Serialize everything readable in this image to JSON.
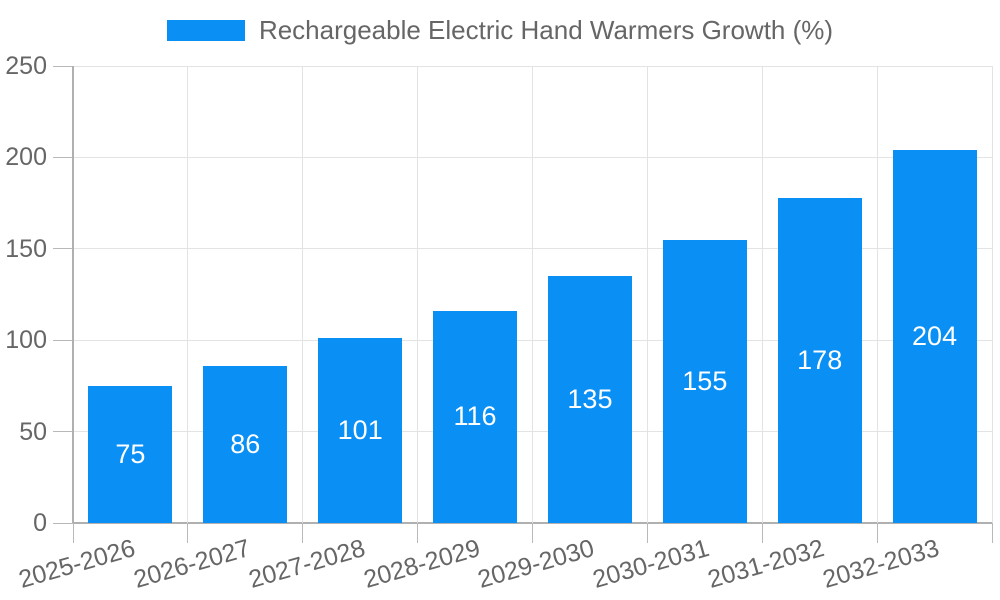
{
  "legend": {
    "label": "Rechargeable Electric Hand Warmers Growth (%)"
  },
  "chart_data": {
    "type": "bar",
    "title": "",
    "legend_entries": [
      "Rechargeable Electric Hand Warmers Growth (%)"
    ],
    "legend_position": "top",
    "categories": [
      "2025-2026",
      "2026-2027",
      "2027-2028",
      "2028-2029",
      "2029-2030",
      "2030-2031",
      "2031-2032",
      "2032-2033"
    ],
    "values": [
      75,
      86,
      101,
      116,
      135,
      155,
      178,
      204
    ],
    "value_labels": [
      "75",
      "86",
      "101",
      "116",
      "135",
      "155",
      "178",
      "204"
    ],
    "xlabel": "",
    "ylabel": "",
    "ylim": [
      0,
      250
    ],
    "yticks": [
      0,
      50,
      100,
      150,
      200,
      250
    ],
    "grid": true,
    "x_label_rotation_deg": -16,
    "colors": {
      "bar": "#0a8ff5",
      "gridline": "#e3e3e3",
      "axis_line": "#b0b0b0",
      "tick_mark": "#b8b8b8",
      "tick_label": "#666666",
      "legend_label": "#666666",
      "value_label": "#ffffff",
      "background": "#ffffff"
    }
  }
}
